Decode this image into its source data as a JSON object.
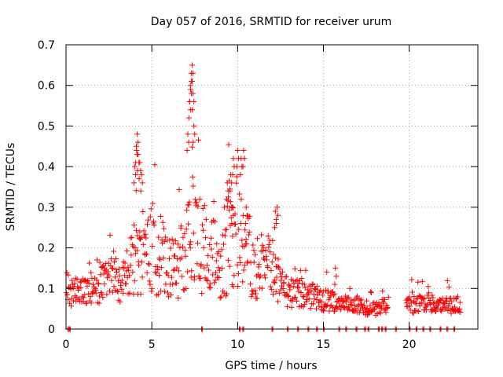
{
  "chart_data": {
    "type": "scatter",
    "title": "Day 057 of 2016, SRMTID for receiver urum",
    "xlabel": "GPS time / hours",
    "ylabel": "SRMTID / TECUs",
    "xlim": [
      0,
      24
    ],
    "ylim": [
      0,
      0.7
    ],
    "xticks": [
      0,
      5,
      10,
      15,
      20
    ],
    "xtick_labels": [
      "0",
      "5",
      "10",
      "15",
      "20"
    ],
    "yticks": [
      0,
      0.1,
      0.2,
      0.3,
      0.4,
      0.5,
      0.6,
      0.7
    ],
    "ytick_labels": [
      "0",
      "0.1",
      "0.2",
      "0.3",
      "0.4",
      "0.5",
      "0.6",
      "0.7"
    ],
    "grid": true,
    "marker": "+",
    "color": "#ff0000",
    "trend_knots": {
      "t": [
        0,
        0.5,
        1,
        2,
        3,
        3.6,
        4.0,
        4.3,
        5,
        5.5,
        6,
        6.5,
        7,
        7.3,
        7.6,
        8,
        8.6,
        9,
        9.5,
        10,
        10.5,
        11,
        11.5,
        12,
        12.5,
        13,
        13.5,
        14,
        14.5,
        15,
        15.5,
        16,
        16.5,
        17,
        17.5,
        18,
        18.6,
        19.5,
        20,
        20.5,
        21,
        21.5,
        22,
        22.5,
        23
      ],
      "srmtid": [
        0.1,
        0.09,
        0.1,
        0.11,
        0.12,
        0.14,
        0.17,
        0.19,
        0.2,
        0.18,
        0.15,
        0.16,
        0.18,
        0.24,
        0.22,
        0.2,
        0.16,
        0.12,
        0.22,
        0.24,
        0.2,
        0.13,
        0.14,
        0.15,
        0.11,
        0.09,
        0.09,
        0.08,
        0.08,
        0.07,
        0.07,
        0.06,
        0.06,
        0.06,
        0.05,
        0.05,
        0.06,
        0.06,
        0.06,
        0.06,
        0.07,
        0.06,
        0.06,
        0.06,
        0.06
      ]
    },
    "notable_points": {
      "t": [
        4.0,
        4.1,
        4.15,
        4.2,
        4.3,
        4.4,
        7.1,
        7.2,
        7.25,
        7.3,
        7.35,
        7.4,
        7.45,
        9.4,
        9.5,
        9.6,
        9.7,
        9.75,
        10.0,
        10.2,
        10.35,
        10.5,
        12.2,
        12.3,
        15.7
      ],
      "srmtid": [
        0.4,
        0.45,
        0.48,
        0.43,
        0.41,
        0.38,
        0.48,
        0.56,
        0.6,
        0.63,
        0.65,
        0.58,
        0.5,
        0.36,
        0.365,
        0.38,
        0.3,
        0.42,
        0.44,
        0.42,
        0.44,
        0.3,
        0.29,
        0.3,
        0.15
      ]
    },
    "zero_points": {
      "t": [
        0.1,
        0.2,
        7.9,
        10.1,
        10.3,
        12.0,
        12.9,
        13.5,
        14.1,
        14.6,
        15.0,
        15.9,
        16.3,
        16.9,
        17.4,
        17.6,
        18.2,
        18.4,
        18.6,
        19.2,
        20.0,
        20.4,
        20.8,
        21.2,
        21.8,
        22.2,
        22.6
      ]
    },
    "gaps": [
      [
        18.8,
        19.8
      ]
    ]
  }
}
